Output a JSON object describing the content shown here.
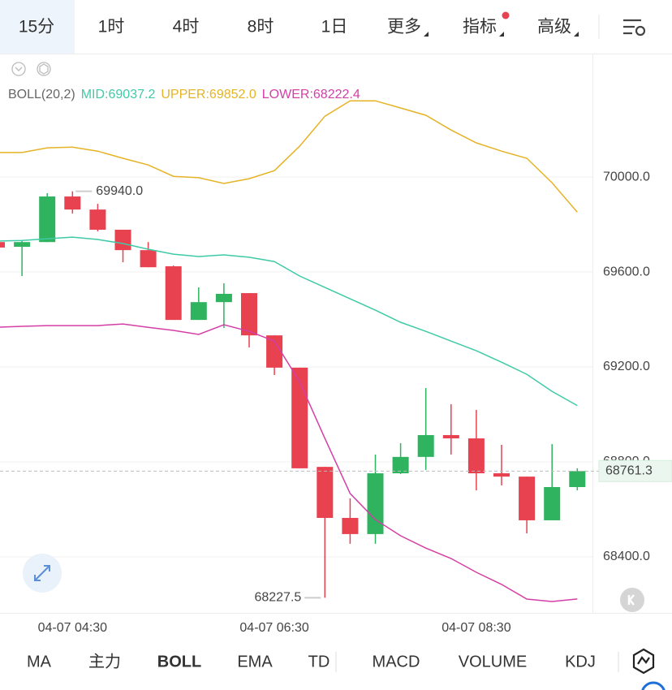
{
  "tabs": [
    "15分",
    "1时",
    "4时",
    "8时",
    "1日",
    "更多",
    "指标",
    "高级"
  ],
  "indicator_tabs": [
    "MA",
    "主力",
    "BOLL",
    "EMA",
    "TD",
    "MACD",
    "VOLUME",
    "KDJ"
  ],
  "chart_data": {
    "type": "candlestick",
    "indicator": {
      "label": "BOLL(20,2)",
      "readouts": [
        {
          "name": "MID:",
          "value": "69037.2"
        },
        {
          "name": "UPPER:",
          "value": "69852.0"
        },
        {
          "name": "LOWER:",
          "value": "68222.4"
        }
      ]
    },
    "categories": [
      null,
      null,
      null,
      "04-07 04:30",
      null,
      null,
      null,
      null,
      null,
      null,
      null,
      "04-07 06:30",
      null,
      null,
      null,
      null,
      null,
      null,
      null,
      "04-07 08:30",
      null,
      null,
      null,
      null
    ],
    "open": [
      69726,
      69706,
      69726,
      69918,
      69863,
      69778,
      69692,
      69624,
      69398,
      69473,
      69511,
      69333,
      69197,
      68779,
      68564,
      68496,
      68752,
      68821,
      68913,
      68899,
      68752,
      68738,
      68554,
      68694
    ],
    "high": [
      69726,
      69733,
      69932,
      69940,
      69887,
      69778,
      69726,
      69627,
      69535,
      69552,
      69511,
      69333,
      69197,
      68779,
      68646,
      68831,
      68879,
      69111,
      69043,
      69019,
      68872,
      68738,
      68875,
      68773
    ],
    "low": [
      69703,
      69583,
      69726,
      69846,
      69771,
      69641,
      69620,
      69398,
      69398,
      69364,
      69282,
      69166,
      68773,
      68227.5,
      68455,
      68455,
      68749,
      68766,
      68831,
      68680,
      68701,
      68499,
      68554,
      68680
    ],
    "close": [
      69703,
      69726,
      69918,
      69863,
      69778,
      69692,
      69620,
      69398,
      69473,
      69508,
      69333,
      69197,
      68773,
      68564,
      68496,
      68752,
      68821,
      68913,
      68899,
      68752,
      68738,
      68554,
      68694,
      68761.3
    ],
    "up_color": "#2fb35f",
    "down_color": "#e8414f",
    "series": [
      {
        "name": "MID",
        "color": "#3fcaa6",
        "values": [
          69730,
          69733,
          69740,
          69747,
          69737,
          69720,
          69696,
          69675,
          69665,
          69672,
          69662,
          69644,
          69583,
          69535,
          69487,
          69439,
          69388,
          69350,
          69309,
          69268,
          69220,
          69169,
          69097,
          69037.2
        ]
      },
      {
        "name": "UPPER",
        "color": "#e6b325",
        "values": [
          70103,
          70103,
          70123,
          70126,
          70109,
          70079,
          70051,
          70003,
          69997,
          69973,
          69993,
          70027,
          70130,
          70256,
          70321,
          70321,
          70291,
          70260,
          70198,
          70144,
          70109,
          70079,
          69976,
          69852
        ]
      },
      {
        "name": "LOWER",
        "color": "#d43fa6",
        "values": [
          69367,
          69371,
          69374,
          69374,
          69374,
          69381,
          69367,
          69354,
          69337,
          69378,
          69350,
          69309,
          69138,
          68899,
          68667,
          68557,
          68489,
          68437,
          68393,
          68335,
          68284,
          68222,
          68212,
          68222.4
        ]
      }
    ],
    "annotations": [
      {
        "value": 69940,
        "label": "69940.0"
      },
      {
        "value": 68227.5,
        "label": "68227.5"
      }
    ],
    "ylim": [
      68164,
      70520
    ],
    "yticks": [
      {
        "value": 70000,
        "label": "70000.0"
      },
      {
        "value": 69600,
        "label": "69600.0"
      },
      {
        "value": 69200,
        "label": "69200.0"
      },
      {
        "value": 68800,
        "label": "68800.0"
      },
      {
        "value": 68400,
        "label": "68400.0"
      }
    ],
    "grid": true
  }
}
